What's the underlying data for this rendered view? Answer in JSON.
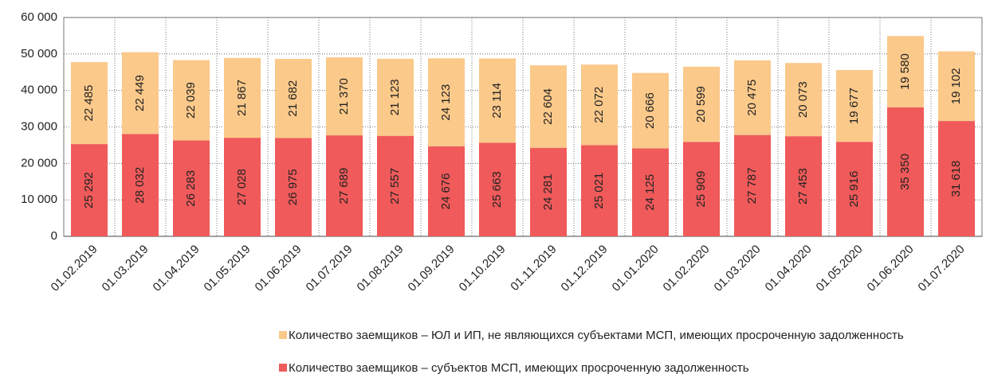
{
  "chart_data": {
    "type": "stacked_bar",
    "categories": [
      "01.02.2019",
      "01.03.2019",
      "01.04.2019",
      "01.05.2019",
      "01.06.2019",
      "01.07.2019",
      "01.08.2019",
      "01.09.2019",
      "01.10.2019",
      "01.11.2019",
      "01.12.2019",
      "01.01.2020",
      "01.02.2020",
      "01.03.2020",
      "01.04.2020",
      "01.05.2020",
      "01.06.2020",
      "01.07.2020"
    ],
    "series": [
      {
        "name": "Количество заемщиков –  ЮЛ и ИП, не являющихся субъектами МСП, имеющих просроченную задолженность",
        "color": "#fbc98a",
        "values": [
          22485,
          22449,
          22039,
          21867,
          21682,
          21370,
          21123,
          24123,
          23114,
          22604,
          22072,
          20666,
          20599,
          20475,
          20073,
          19677,
          19580,
          19102
        ],
        "value_labels": [
          "22 485",
          "22 449",
          "22 039",
          "21 867",
          "21 682",
          "21 370",
          "21 123",
          "24 123",
          "23 114",
          "22 604",
          "22 072",
          "20 666",
          "20 599",
          "20 475",
          "20 073",
          "19 677",
          "19 580",
          "19 102"
        ]
      },
      {
        "name": "Количество заемщиков – субъектов МСП, имеющих просроченную задолженность",
        "color": "#f05a5a",
        "values": [
          25292,
          28032,
          26283,
          27028,
          26975,
          27689,
          27557,
          24676,
          25663,
          24281,
          25021,
          24125,
          25909,
          27787,
          27453,
          25916,
          35350,
          31618
        ],
        "value_labels": [
          "25 292",
          "28 032",
          "26 283",
          "27 028",
          "26 975",
          "27 689",
          "27 557",
          "24 676",
          "25 663",
          "24 281",
          "25 021",
          "24 125",
          "25 909",
          "27 787",
          "27 453",
          "25 916",
          "35 350",
          "31 618"
        ]
      }
    ],
    "ylim": [
      0,
      60000
    ],
    "yticks": [
      0,
      {
        "value": 10000,
        "label": "10 000"
      },
      {
        "value": 20000,
        "label": "20 000"
      },
      {
        "value": 30000,
        "label": "30 000"
      },
      {
        "value": 40000,
        "label": "40 000"
      },
      {
        "value": 50000,
        "label": "50 000"
      },
      {
        "value": 60000,
        "label": "60 000"
      }
    ],
    "grid": true
  }
}
